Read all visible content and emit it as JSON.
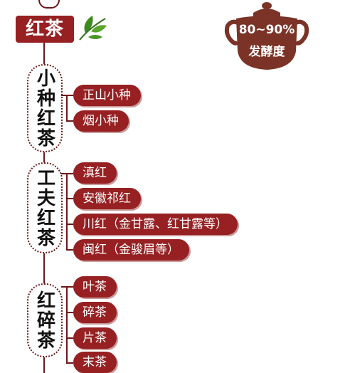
{
  "title": "红茶",
  "fermentation": {
    "range": "80~90%",
    "label": "发酵度"
  },
  "categories": [
    {
      "name": "小种红茶",
      "items": [
        "正山小种",
        "烟小种"
      ]
    },
    {
      "name": "工夫红茶",
      "items": [
        "滇红",
        "安徽祁红",
        "川红（金甘露、红甘露等）",
        "闽红（金骏眉等）"
      ]
    },
    {
      "name": "红碎茶",
      "items": [
        "叶茶",
        "碎茶",
        "片茶",
        "末茶"
      ]
    }
  ],
  "colors": {
    "accent": "#962022",
    "line": "#6d1718",
    "pot": "#7a3326",
    "leaf": "#3d8a1e"
  },
  "icons": [
    "leaf-icon",
    "teapot-icon"
  ]
}
